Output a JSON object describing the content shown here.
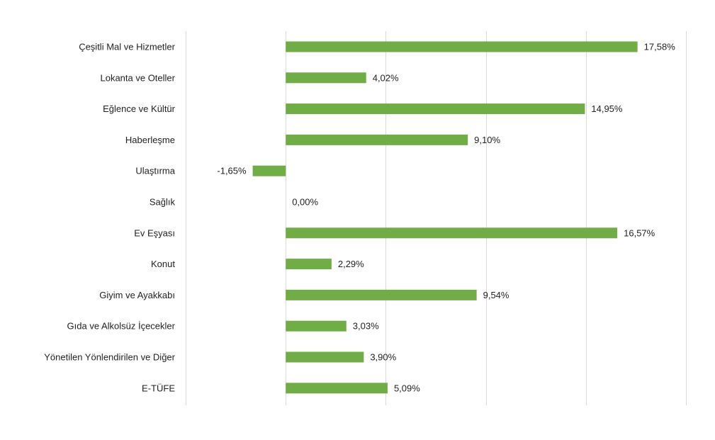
{
  "chart_data": {
    "type": "bar",
    "orientation": "horizontal",
    "categories": [
      "Çeşitli Mal ve Hizmetler",
      "Lokanta ve Oteller",
      "Eğlence ve Kültür",
      "Haberleşme",
      "Ulaştırma",
      "Sağlık",
      "Ev Eşyası",
      "Konut",
      "Giyim ve Ayakkabı",
      "Gıda ve Alkolsüz İçecekler",
      "Yönetilen Yönlendirilen ve Diğer",
      "E-TÜFE"
    ],
    "values": [
      17.58,
      4.02,
      14.95,
      9.1,
      -1.65,
      0.0,
      16.57,
      2.29,
      9.54,
      3.03,
      3.9,
      5.09
    ],
    "value_labels": [
      "17,58%",
      "4,02%",
      "14,95%",
      "9,10%",
      "-1,65%",
      "0,00%",
      "16,57%",
      "2,29%",
      "9,54%",
      "3,03%",
      "3,90%",
      "5,09%"
    ],
    "xlim": [
      -5,
      20
    ],
    "grid": true,
    "legend": "none",
    "bar_color": "#70ad47",
    "title": "",
    "xlabel": "",
    "ylabel": ""
  }
}
